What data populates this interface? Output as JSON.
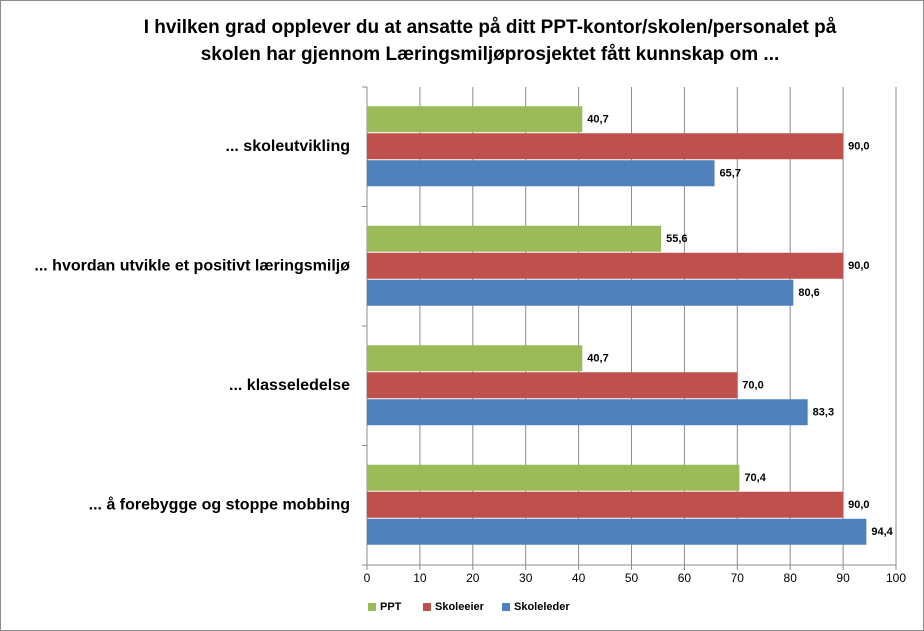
{
  "chart_data": {
    "type": "hbar",
    "title": "I hvilken grad opplever du at ansatte på ditt PPT-kontor/skolen/personalet på skolen har gjennom Læringsmiljøprosjektet fått kunnskap om ...",
    "categories": [
      "... skoleutvikling",
      "... hvordan utvikle et positivt læringsmiljø",
      "... klasseledelse",
      "... å forebygge og stoppe mobbing"
    ],
    "series": [
      {
        "name": "PPT",
        "color": "#9bbb59",
        "values": [
          40.7,
          55.6,
          40.7,
          70.4
        ],
        "value_labels": [
          "40,7",
          "55,6",
          "40,7",
          "70,4"
        ]
      },
      {
        "name": "Skoleeier",
        "color": "#c0504d",
        "values": [
          90.0,
          90.0,
          70.0,
          90.0
        ],
        "value_labels": [
          "90,0",
          "90,0",
          "70,0",
          "90,0"
        ]
      },
      {
        "name": "Skoleleder",
        "color": "#4f81bd",
        "values": [
          65.7,
          80.6,
          83.3,
          94.4
        ],
        "value_labels": [
          "65,7",
          "80,6",
          "83,3",
          "94,4"
        ]
      }
    ],
    "xlim": [
      0,
      100
    ],
    "xticks": [
      0,
      10,
      20,
      30,
      40,
      50,
      60,
      70,
      80,
      90,
      100
    ],
    "grid": true,
    "legend": "bottom"
  }
}
